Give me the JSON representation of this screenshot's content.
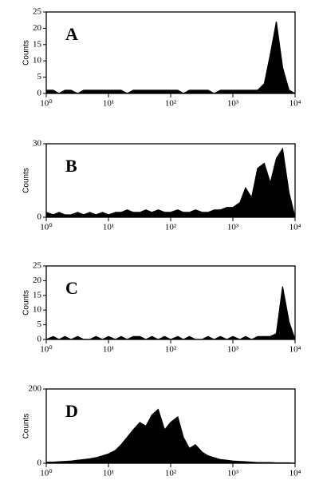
{
  "chart_data": [
    {
      "type": "area",
      "label": "A",
      "ylabel": "Counts",
      "color": "#000000",
      "log_x": true,
      "xlim": [
        1,
        10000
      ],
      "xticks": [
        {
          "value": 1,
          "label": "10⁰"
        },
        {
          "value": 10,
          "label": "10¹"
        },
        {
          "value": 100,
          "label": "10²"
        },
        {
          "value": 1000,
          "label": "10³"
        },
        {
          "value": 10000,
          "label": "10⁴"
        }
      ],
      "ylim": [
        0,
        25
      ],
      "yticks": [
        0,
        5,
        10,
        15,
        20,
        25
      ],
      "x": [
        1,
        1.3,
        1.6,
        2,
        2.5,
        3.2,
        4,
        5,
        6.3,
        8,
        10,
        13,
        16,
        20,
        25,
        32,
        40,
        50,
        63,
        80,
        100,
        130,
        160,
        200,
        250,
        320,
        400,
        500,
        630,
        800,
        1000,
        1300,
        1600,
        2000,
        2500,
        3200,
        4000,
        5000,
        6300,
        8000,
        10000
      ],
      "values": [
        1,
        1,
        0,
        1,
        1,
        0,
        1,
        1,
        1,
        1,
        1,
        1,
        1,
        0,
        1,
        1,
        1,
        1,
        1,
        1,
        1,
        1,
        0,
        1,
        1,
        1,
        1,
        0,
        1,
        1,
        1,
        1,
        1,
        1,
        1,
        3,
        12,
        22,
        8,
        1,
        0
      ]
    },
    {
      "type": "area",
      "label": "B",
      "ylabel": "Counts",
      "color": "#000000",
      "log_x": true,
      "xlim": [
        1,
        10000
      ],
      "xticks": [
        {
          "value": 1,
          "label": "10⁰"
        },
        {
          "value": 10,
          "label": "10¹"
        },
        {
          "value": 100,
          "label": "10²"
        },
        {
          "value": 1000,
          "label": "10³"
        },
        {
          "value": 10000,
          "label": "10⁴"
        }
      ],
      "ylim": [
        0,
        30
      ],
      "yticks": [
        0,
        30
      ],
      "x": [
        1,
        1.3,
        1.6,
        2,
        2.5,
        3.2,
        4,
        5,
        6.3,
        8,
        10,
        13,
        16,
        20,
        25,
        32,
        40,
        50,
        63,
        80,
        100,
        130,
        160,
        200,
        250,
        320,
        400,
        500,
        630,
        800,
        1000,
        1300,
        1600,
        2000,
        2500,
        3200,
        4000,
        5000,
        6300,
        8000,
        10000
      ],
      "values": [
        2,
        1,
        2,
        1,
        1,
        2,
        1,
        2,
        1,
        2,
        1,
        2,
        2,
        3,
        2,
        2,
        3,
        2,
        3,
        2,
        2,
        3,
        2,
        2,
        3,
        2,
        2,
        3,
        3,
        4,
        4,
        6,
        12,
        8,
        20,
        22,
        14,
        24,
        28,
        10,
        0
      ]
    },
    {
      "type": "area",
      "label": "C",
      "ylabel": "Counts",
      "color": "#000000",
      "log_x": true,
      "xlim": [
        1,
        10000
      ],
      "xticks": [
        {
          "value": 1,
          "label": "10⁰"
        },
        {
          "value": 10,
          "label": "10¹"
        },
        {
          "value": 100,
          "label": "10²"
        },
        {
          "value": 1000,
          "label": "10³"
        },
        {
          "value": 10000,
          "label": "10⁴"
        }
      ],
      "ylim": [
        0,
        25
      ],
      "yticks": [
        0,
        5,
        10,
        15,
        20,
        25
      ],
      "x": [
        1,
        1.3,
        1.6,
        2,
        2.5,
        3.2,
        4,
        5,
        6.3,
        8,
        10,
        13,
        16,
        20,
        25,
        32,
        40,
        50,
        63,
        80,
        100,
        130,
        160,
        200,
        250,
        320,
        400,
        500,
        630,
        800,
        1000,
        1300,
        1600,
        2000,
        2500,
        3200,
        4000,
        5000,
        6300,
        8000,
        10000
      ],
      "values": [
        0,
        1,
        0,
        1,
        0,
        1,
        0,
        0,
        1,
        0,
        1,
        0,
        1,
        0,
        1,
        1,
        0,
        1,
        0,
        1,
        0,
        1,
        0,
        1,
        0,
        0,
        1,
        0,
        1,
        0,
        1,
        0,
        1,
        0,
        1,
        1,
        1,
        2,
        18,
        6,
        0
      ]
    },
    {
      "type": "area",
      "label": "D",
      "ylabel": "Counts",
      "color": "#000000",
      "log_x": true,
      "xlim": [
        1,
        10000
      ],
      "xticks": [
        {
          "value": 1,
          "label": "10⁰"
        },
        {
          "value": 10,
          "label": "10¹"
        },
        {
          "value": 100,
          "label": "10²"
        },
        {
          "value": 1000,
          "label": "10³"
        },
        {
          "value": 10000,
          "label": "10⁴"
        }
      ],
      "ylim": [
        0,
        200
      ],
      "yticks": [
        0,
        200
      ],
      "x": [
        1,
        1.3,
        1.6,
        2,
        2.5,
        3.2,
        4,
        5,
        6.3,
        8,
        10,
        13,
        16,
        20,
        25,
        32,
        40,
        50,
        63,
        80,
        100,
        130,
        160,
        200,
        250,
        320,
        400,
        500,
        630,
        800,
        1000,
        1300,
        1600,
        2000,
        2500,
        3200,
        4000,
        5000,
        6300,
        8000,
        10000
      ],
      "values": [
        3,
        3,
        4,
        5,
        6,
        8,
        10,
        12,
        15,
        20,
        25,
        35,
        50,
        70,
        90,
        110,
        100,
        130,
        145,
        90,
        110,
        125,
        70,
        40,
        50,
        30,
        20,
        15,
        10,
        8,
        6,
        5,
        4,
        3,
        2,
        2,
        2,
        1,
        1,
        1,
        0
      ]
    }
  ]
}
